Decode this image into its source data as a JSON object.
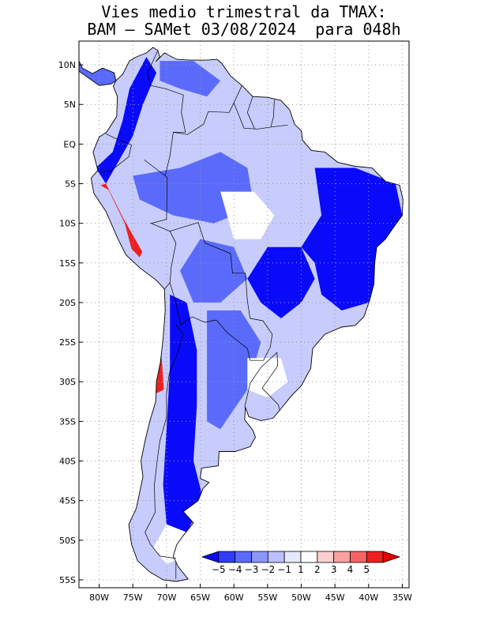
{
  "title": {
    "line1": "Vies medio trimestral da TMAX:",
    "line2": "BAM – SAMet 03/08/2024  para 048h"
  },
  "map": {
    "region": "South America",
    "projection": "lat-lon",
    "lon_range": [
      -83,
      -34
    ],
    "lat_range": [
      -56,
      13
    ],
    "grid": "dotted",
    "lon_ticks": [
      "80W",
      "75W",
      "70W",
      "65W",
      "60W",
      "55W",
      "50W",
      "45W",
      "40W",
      "35W"
    ],
    "lat_ticks": [
      "10N",
      "5N",
      "EQ",
      "5S",
      "10S",
      "15S",
      "20S",
      "25S",
      "30S",
      "35S",
      "40S",
      "45S",
      "50S",
      "55S"
    ]
  },
  "colorbar": {
    "placement": "bottom-right",
    "labels": [
      "-5",
      "-4",
      "-3",
      "-2",
      "-1",
      "1",
      "2",
      "3",
      "4",
      "5"
    ],
    "colors": [
      "#0a0afa",
      "#2f3cfa",
      "#5a6bfb",
      "#8a96fb",
      "#b9c0fc",
      "#e6e8fe",
      "#ffffff",
      "#fcd0d0",
      "#f9a0a0",
      "#f56565",
      "#ee2020",
      "#e60000"
    ],
    "extends": "both"
  },
  "colors": {
    "strong_negative": "#0a0afa",
    "negative": "#5a6bfb",
    "weak_negative": "#c7ccfc",
    "neutral": "#ffffff",
    "positive": "#ee2020",
    "border": "#000000"
  }
}
